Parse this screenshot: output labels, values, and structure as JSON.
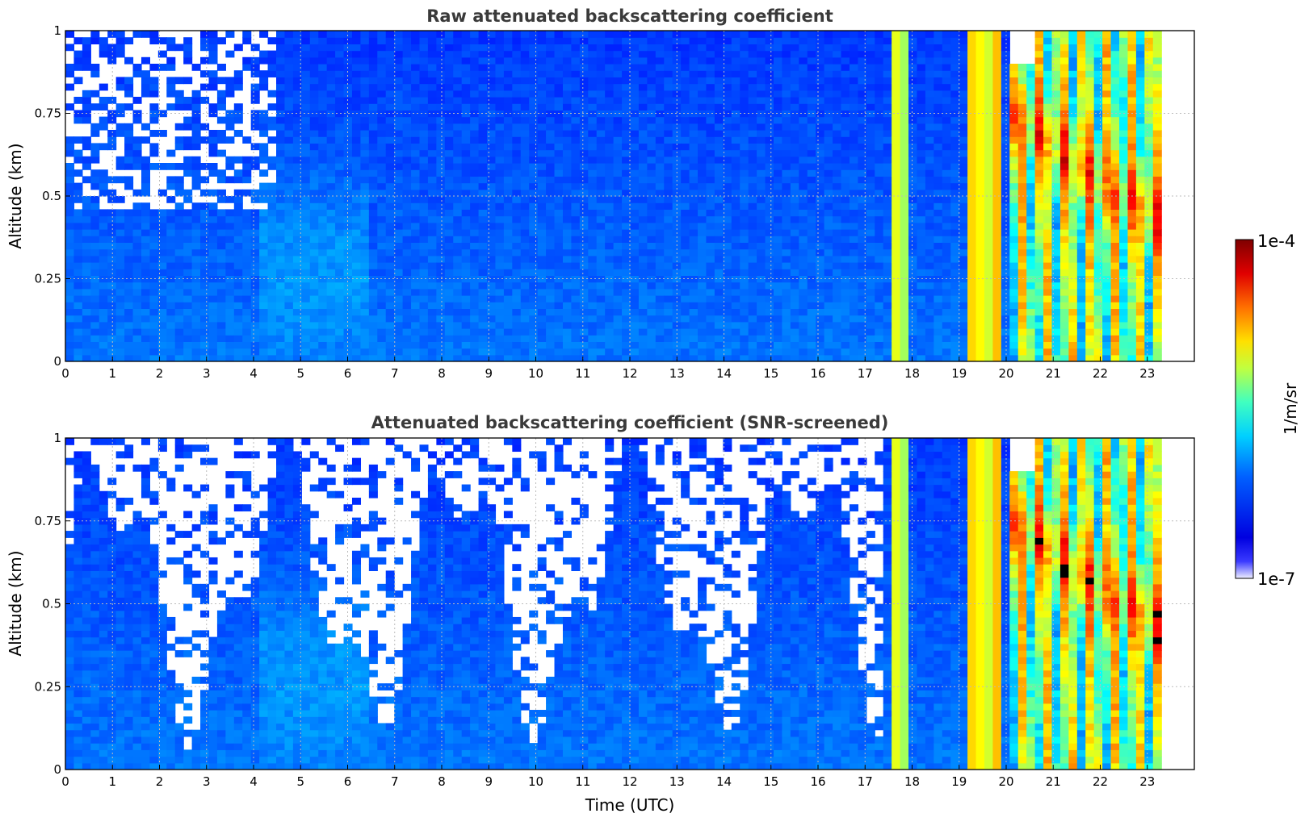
{
  "chart_data": [
    {
      "type": "heatmap",
      "title": "Raw attenuated backscattering coefficient",
      "xlabel": "",
      "ylabel": "Altitude (km)",
      "xlim": [
        0,
        24
      ],
      "ylim": [
        0,
        1
      ],
      "xticks": [
        "0",
        "1",
        "2",
        "3",
        "4",
        "5",
        "6",
        "7",
        "8",
        "9",
        "10",
        "11",
        "12",
        "13",
        "14",
        "15",
        "16",
        "17",
        "18",
        "19",
        "20",
        "21",
        "22",
        "23"
      ],
      "yticks": [
        "0",
        "0.25",
        "0.5",
        "0.75",
        "1"
      ],
      "grid": true,
      "data_end_hour": 23.3,
      "screened": false
    },
    {
      "type": "heatmap",
      "title": "Attenuated backscattering coefficient (SNR-screened)",
      "xlabel": "Time (UTC)",
      "ylabel": "Altitude (km)",
      "xlim": [
        0,
        24
      ],
      "ylim": [
        0,
        1
      ],
      "xticks": [
        "0",
        "1",
        "2",
        "3",
        "4",
        "5",
        "6",
        "7",
        "8",
        "9",
        "10",
        "11",
        "12",
        "13",
        "14",
        "15",
        "16",
        "17",
        "18",
        "19",
        "20",
        "21",
        "22",
        "23"
      ],
      "yticks": [
        "0",
        "0.25",
        "0.5",
        "0.75",
        "1"
      ],
      "grid": true,
      "data_end_hour": 23.3,
      "screened": true
    }
  ],
  "colorbar": {
    "label": "1/m/sr",
    "max_label": "1e-4",
    "min_label": "1e-7",
    "scale": "log",
    "range": [
      1e-07,
      0.0001
    ],
    "colormap": "jet"
  },
  "colors": {
    "title": "#3a3a3a",
    "grid": "#bbbbbb",
    "low": "#e8e8ff",
    "high": "#7f0000"
  }
}
